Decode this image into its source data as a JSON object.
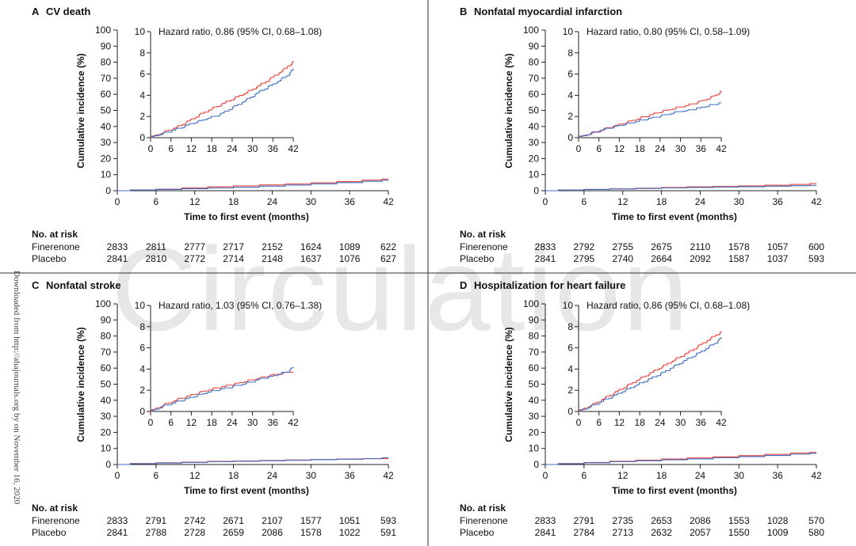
{
  "watermark": "Circulation",
  "download_note": "Downloaded from http://ahajournals.org by on November 16, 2020",
  "common": {
    "xlabel": "Time to first event (months)",
    "ylabel": "Cumulative incidence (%)",
    "risk_header": "No. at risk",
    "group_labels": [
      "Finerenone",
      "Placebo"
    ]
  },
  "colors": {
    "finerenone": "#e8403a",
    "placebo": "#3d6fc4",
    "axis": "#222222",
    "divider": "#333333"
  },
  "chart_data": [
    {
      "panel_letter": "A",
      "title": "CV death",
      "type": "line",
      "hazard_ratio": "Hazard ratio, 0.86 (95% CI, 0.68–1.08)",
      "xlim": [
        0,
        42
      ],
      "ylim": [
        0,
        100
      ],
      "xticks": [
        0,
        6,
        12,
        18,
        24,
        30,
        36,
        42
      ],
      "yticks": [
        0,
        10,
        20,
        30,
        40,
        50,
        60,
        70,
        80,
        90,
        100
      ],
      "inset": {
        "xlim": [
          0,
          42
        ],
        "ylim": [
          0,
          10
        ],
        "xticks": [
          0,
          6,
          12,
          18,
          24,
          30,
          36,
          42
        ],
        "yticks": [
          0,
          2,
          4,
          6,
          8,
          10
        ]
      },
      "series": [
        {
          "name": "Finerenone",
          "x": [
            0,
            4,
            8,
            12,
            16,
            20,
            24,
            28,
            32,
            36,
            40,
            42
          ],
          "y": [
            0,
            0.5,
            1.0,
            1.7,
            2.4,
            3.0,
            3.6,
            4.2,
            4.9,
            5.7,
            6.6,
            7.2
          ]
        },
        {
          "name": "Placebo",
          "x": [
            0,
            4,
            8,
            12,
            16,
            20,
            24,
            28,
            32,
            36,
            40,
            42
          ],
          "y": [
            0,
            0.4,
            0.8,
            1.3,
            1.7,
            2.1,
            2.8,
            3.5,
            4.3,
            5.0,
            5.8,
            6.5
          ]
        }
      ],
      "risk_times": [
        0,
        6,
        12,
        18,
        24,
        30,
        36,
        42
      ],
      "risk": [
        {
          "group": "Finerenone",
          "values": [
            "2833",
            "2811",
            "2777",
            "2717",
            "2152",
            "1624",
            "1089",
            "622"
          ]
        },
        {
          "group": "Placebo",
          "values": [
            "2841",
            "2810",
            "2772",
            "2714",
            "2148",
            "1637",
            "1076",
            "627"
          ]
        }
      ]
    },
    {
      "panel_letter": "B",
      "title": "Nonfatal myocardial infarction",
      "type": "line",
      "hazard_ratio": "Hazard ratio, 0.80 (95% CI, 0.58–1.09)",
      "xlim": [
        0,
        42
      ],
      "ylim": [
        0,
        100
      ],
      "xticks": [
        0,
        6,
        12,
        18,
        24,
        30,
        36,
        42
      ],
      "yticks": [
        0,
        10,
        20,
        30,
        40,
        50,
        60,
        70,
        80,
        90,
        100
      ],
      "inset": {
        "xlim": [
          0,
          42
        ],
        "ylim": [
          0,
          10
        ],
        "xticks": [
          0,
          6,
          12,
          18,
          24,
          30,
          36,
          42
        ],
        "yticks": [
          0,
          2,
          4,
          6,
          8,
          10
        ]
      },
      "series": [
        {
          "name": "Finerenone",
          "x": [
            0,
            4,
            8,
            12,
            16,
            20,
            24,
            28,
            32,
            36,
            40,
            42
          ],
          "y": [
            0,
            0.4,
            0.8,
            1.2,
            1.6,
            2.0,
            2.4,
            2.7,
            3.0,
            3.4,
            3.9,
            4.4
          ]
        },
        {
          "name": "Placebo",
          "x": [
            0,
            4,
            8,
            12,
            16,
            20,
            24,
            28,
            32,
            36,
            40,
            42
          ],
          "y": [
            0,
            0.4,
            0.8,
            1.1,
            1.4,
            1.7,
            2.0,
            2.3,
            2.5,
            2.8,
            3.1,
            3.3
          ]
        }
      ],
      "risk_times": [
        0,
        6,
        12,
        18,
        24,
        30,
        36,
        42
      ],
      "risk": [
        {
          "group": "Finerenone",
          "values": [
            "2833",
            "2792",
            "2755",
            "2675",
            "2110",
            "1578",
            "1057",
            "600"
          ]
        },
        {
          "group": "Placebo",
          "values": [
            "2841",
            "2795",
            "2740",
            "2664",
            "2092",
            "1587",
            "1037",
            "593"
          ]
        }
      ]
    },
    {
      "panel_letter": "C",
      "title": "Nonfatal stroke",
      "type": "line",
      "hazard_ratio": "Hazard ratio, 1.03 (95% CI, 0.76–1.38)",
      "xlim": [
        0,
        42
      ],
      "ylim": [
        0,
        100
      ],
      "xticks": [
        0,
        6,
        12,
        18,
        24,
        30,
        36,
        42
      ],
      "yticks": [
        0,
        10,
        20,
        30,
        40,
        50,
        60,
        70,
        80,
        90,
        100
      ],
      "inset": {
        "xlim": [
          0,
          42
        ],
        "ylim": [
          0,
          10
        ],
        "xticks": [
          0,
          6,
          12,
          18,
          24,
          30,
          36,
          42
        ],
        "yticks": [
          0,
          2,
          4,
          6,
          8,
          10
        ]
      },
      "series": [
        {
          "name": "Finerenone",
          "x": [
            0,
            4,
            8,
            12,
            16,
            20,
            24,
            28,
            32,
            36,
            40,
            42
          ],
          "y": [
            0,
            0.6,
            1.1,
            1.5,
            1.9,
            2.2,
            2.5,
            2.8,
            3.1,
            3.4,
            3.6,
            3.7
          ]
        },
        {
          "name": "Placebo",
          "x": [
            0,
            4,
            8,
            12,
            16,
            20,
            24,
            28,
            32,
            36,
            40,
            42
          ],
          "y": [
            0,
            0.5,
            0.9,
            1.3,
            1.7,
            2.0,
            2.3,
            2.6,
            3.0,
            3.3,
            3.7,
            4.2
          ]
        }
      ],
      "risk_times": [
        0,
        6,
        12,
        18,
        24,
        30,
        36,
        42
      ],
      "risk": [
        {
          "group": "Finerenone",
          "values": [
            "2833",
            "2791",
            "2742",
            "2671",
            "2107",
            "1577",
            "1051",
            "593"
          ]
        },
        {
          "group": "Placebo",
          "values": [
            "2841",
            "2788",
            "2728",
            "2659",
            "2086",
            "1578",
            "1022",
            "591"
          ]
        }
      ]
    },
    {
      "panel_letter": "D",
      "title": "Hospitalization for heart failure",
      "type": "line",
      "hazard_ratio": "Hazard ratio, 0.86 (95% CI, 0.68–1.08)",
      "xlim": [
        0,
        42
      ],
      "ylim": [
        0,
        100
      ],
      "xticks": [
        0,
        6,
        12,
        18,
        24,
        30,
        36,
        42
      ],
      "yticks": [
        0,
        10,
        20,
        30,
        40,
        50,
        60,
        70,
        80,
        90,
        100
      ],
      "inset": {
        "xlim": [
          0,
          42
        ],
        "ylim": [
          0,
          10
        ],
        "xticks": [
          0,
          6,
          12,
          18,
          24,
          30,
          36,
          42
        ],
        "yticks": [
          0,
          2,
          4,
          6,
          8,
          10
        ]
      },
      "series": [
        {
          "name": "Finerenone",
          "x": [
            0,
            4,
            8,
            12,
            16,
            20,
            24,
            28,
            32,
            36,
            40,
            42
          ],
          "y": [
            0,
            0.6,
            1.3,
            2.0,
            2.7,
            3.4,
            4.1,
            4.8,
            5.5,
            6.3,
            7.1,
            7.5
          ]
        },
        {
          "name": "Placebo",
          "x": [
            0,
            4,
            8,
            12,
            16,
            20,
            24,
            28,
            32,
            36,
            40,
            42
          ],
          "y": [
            0,
            0.5,
            1.1,
            1.7,
            2.3,
            2.9,
            3.5,
            4.2,
            4.9,
            5.6,
            6.4,
            7.0
          ]
        }
      ],
      "risk_times": [
        0,
        6,
        12,
        18,
        24,
        30,
        36,
        42
      ],
      "risk": [
        {
          "group": "Finerenone",
          "values": [
            "2833",
            "2791",
            "2735",
            "2653",
            "2086",
            "1553",
            "1028",
            "570"
          ]
        },
        {
          "group": "Placebo",
          "values": [
            "2841",
            "2784",
            "2713",
            "2632",
            "2057",
            "1550",
            "1009",
            "580"
          ]
        }
      ]
    }
  ]
}
